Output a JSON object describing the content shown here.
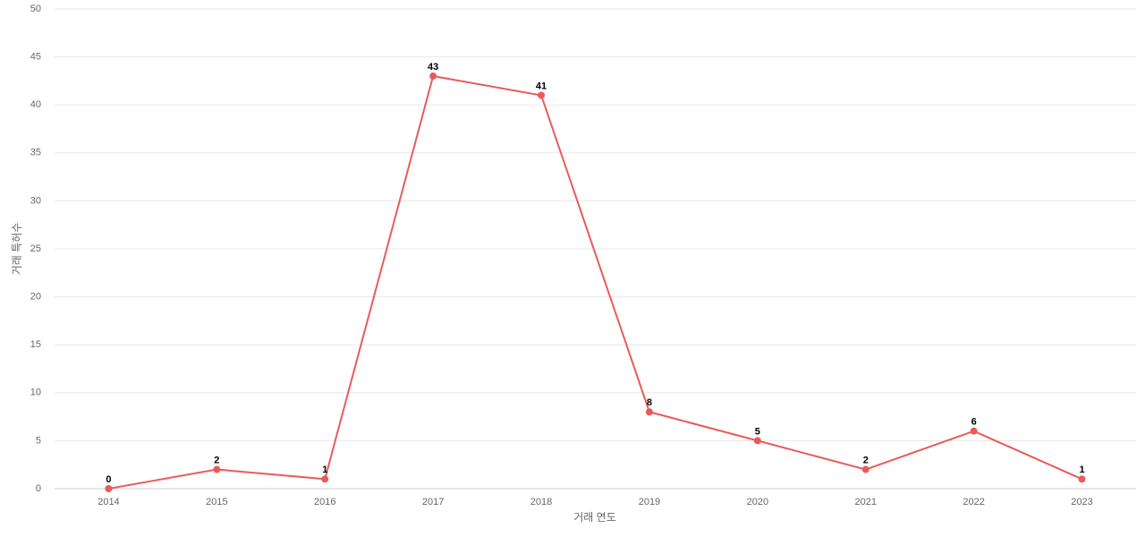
{
  "chart_data": {
    "type": "line",
    "x_label": "거래 연도",
    "y_label": "거래 특허수",
    "categories": [
      "2014",
      "2015",
      "2016",
      "2017",
      "2018",
      "2019",
      "2020",
      "2021",
      "2022",
      "2023"
    ],
    "series": [
      {
        "name": "거래 특허수",
        "color": "#e85b5b",
        "values": [
          0,
          2,
          1,
          43,
          41,
          8,
          5,
          2,
          6,
          1
        ]
      }
    ],
    "ylim": [
      0,
      50
    ],
    "yticks": [
      0,
      5,
      10,
      15,
      20,
      25,
      30,
      35,
      40,
      45,
      50
    ],
    "grid": true
  }
}
